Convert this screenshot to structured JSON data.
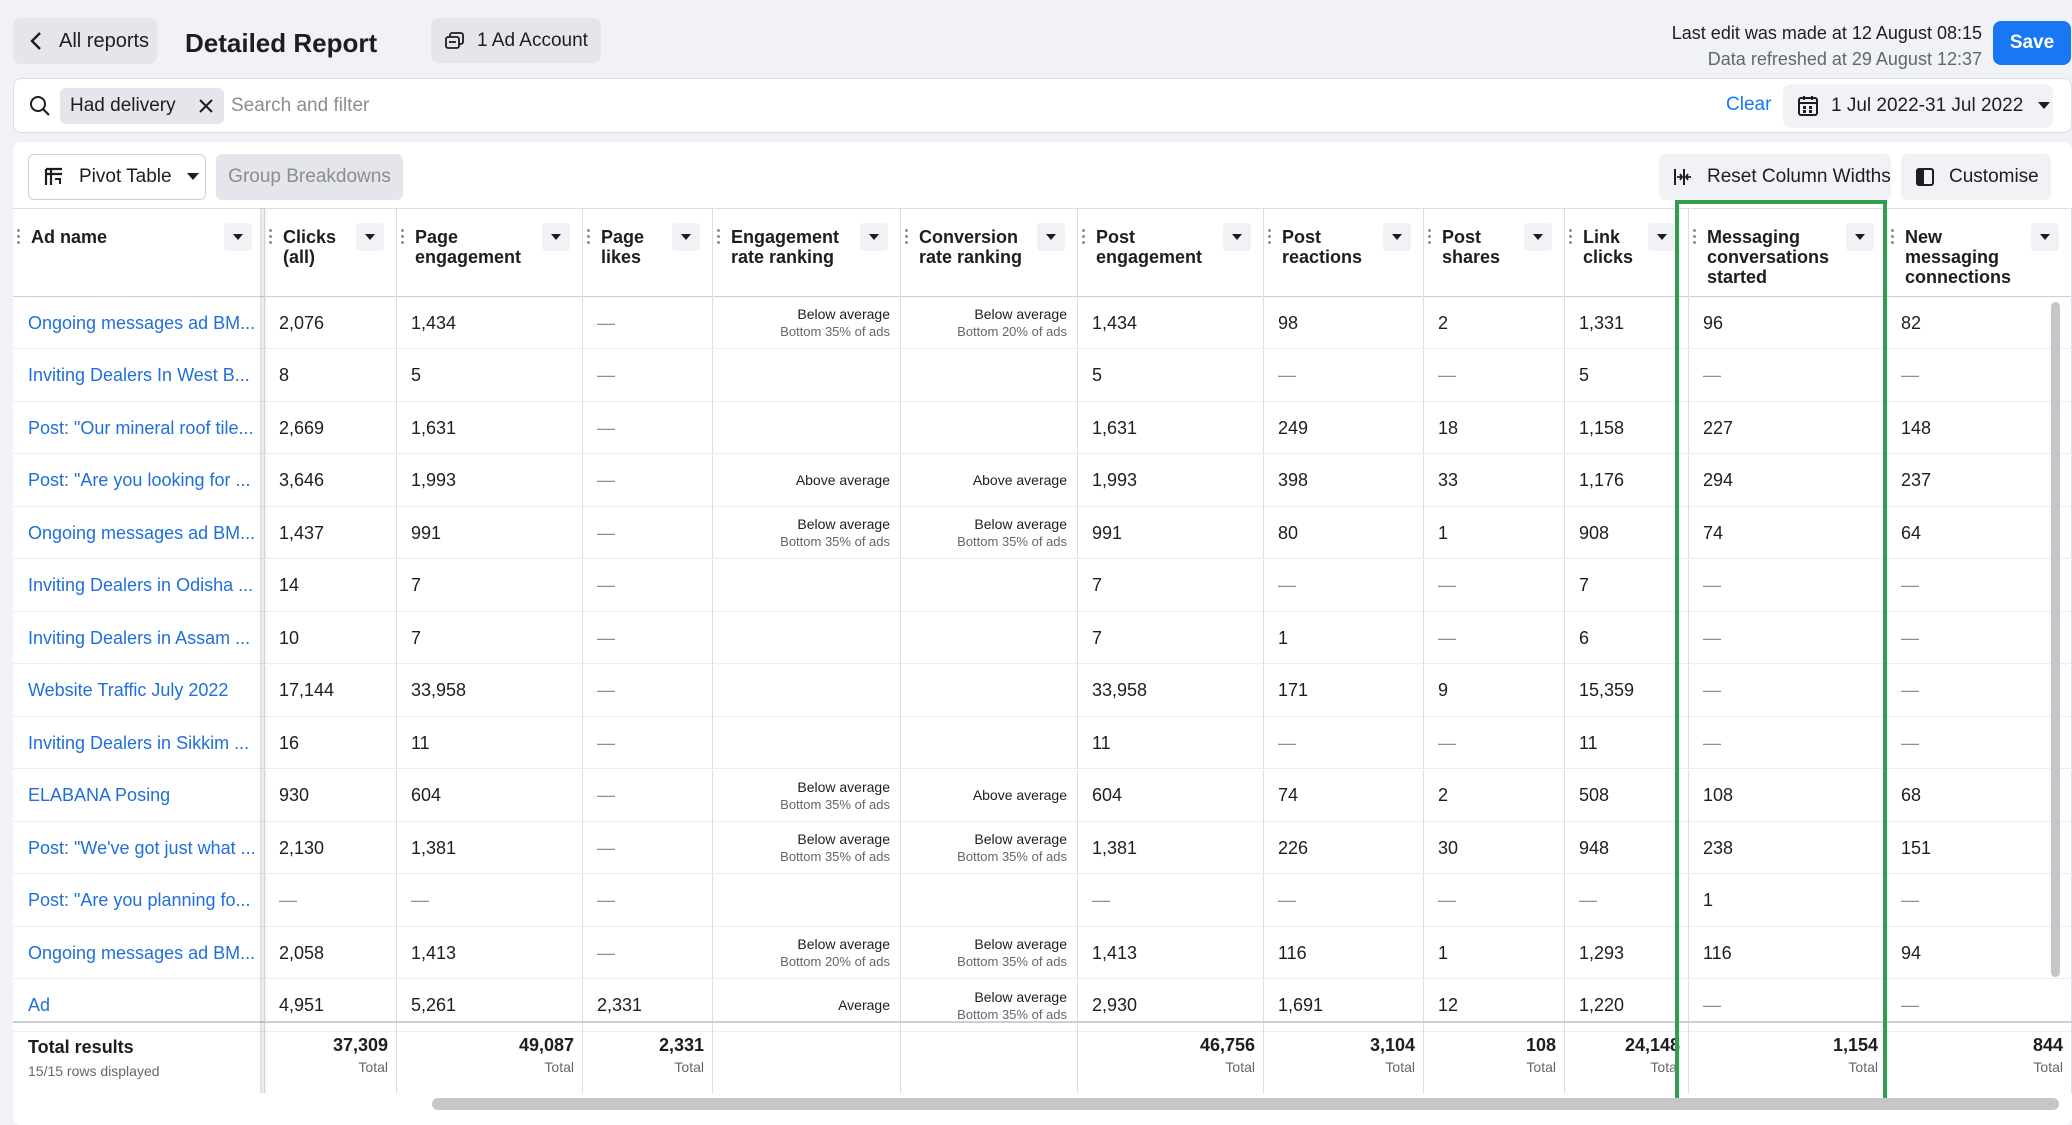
{
  "header": {
    "back_label": "All reports",
    "title": "Detailed Report",
    "account_label": "1 Ad Account",
    "last_edit": "Last edit was made at 12 August 08:15",
    "refreshed": "Data refreshed at 29 August 12:37",
    "save_label": "Save"
  },
  "search": {
    "chip_label": "Had delivery",
    "placeholder": "Search and filter",
    "value": "",
    "clear_label": "Clear",
    "date_range": "1 Jul 2022-31 Jul 2022"
  },
  "toolbar": {
    "pivot_label": "Pivot Table",
    "group_label": "Group Breakdowns",
    "reset_label": "Reset Column Widths",
    "customise_label": "Customise"
  },
  "columns": [
    {
      "key": "name",
      "label": "Ad name"
    },
    {
      "key": "clicks",
      "label": "Clicks (all)"
    },
    {
      "key": "page_eng",
      "label": "Page engagement"
    },
    {
      "key": "page_likes",
      "label": "Page likes"
    },
    {
      "key": "eng_rank",
      "label": "Engagement rate ranking"
    },
    {
      "key": "conv_rank",
      "label": "Conversion rate ranking"
    },
    {
      "key": "post_eng",
      "label": "Post engagement"
    },
    {
      "key": "reactions",
      "label": "Post reactions"
    },
    {
      "key": "shares",
      "label": "Post shares"
    },
    {
      "key": "link_clicks",
      "label": "Link clicks"
    },
    {
      "key": "msg_conv",
      "label": "Messaging conversations started"
    },
    {
      "key": "new_msg",
      "label": "New messaging connections"
    }
  ],
  "rows": [
    {
      "name": "Ongoing messages ad BM...",
      "clicks": "2,076",
      "page_eng": "1,434",
      "page_likes": "—",
      "eng_rank": [
        "Below average",
        "Bottom 35% of ads"
      ],
      "conv_rank": [
        "Below average",
        "Bottom 20% of ads"
      ],
      "post_eng": "1,434",
      "reactions": "98",
      "shares": "2",
      "link_clicks": "1,331",
      "msg_conv": "96",
      "new_msg": "82"
    },
    {
      "name": "Inviting Dealers In West B...",
      "clicks": "8",
      "page_eng": "5",
      "page_likes": "—",
      "eng_rank": [],
      "conv_rank": [],
      "post_eng": "5",
      "reactions": "—",
      "shares": "—",
      "link_clicks": "5",
      "msg_conv": "—",
      "new_msg": "—"
    },
    {
      "name": "Post: \"Our mineral roof tile...",
      "clicks": "2,669",
      "page_eng": "1,631",
      "page_likes": "—",
      "eng_rank": [],
      "conv_rank": [],
      "post_eng": "1,631",
      "reactions": "249",
      "shares": "18",
      "link_clicks": "1,158",
      "msg_conv": "227",
      "new_msg": "148"
    },
    {
      "name": "Post: \"Are you looking for ...",
      "clicks": "3,646",
      "page_eng": "1,993",
      "page_likes": "—",
      "eng_rank": [
        "Above average"
      ],
      "conv_rank": [
        "Above average"
      ],
      "post_eng": "1,993",
      "reactions": "398",
      "shares": "33",
      "link_clicks": "1,176",
      "msg_conv": "294",
      "new_msg": "237"
    },
    {
      "name": "Ongoing messages ad BM...",
      "clicks": "1,437",
      "page_eng": "991",
      "page_likes": "—",
      "eng_rank": [
        "Below average",
        "Bottom 35% of ads"
      ],
      "conv_rank": [
        "Below average",
        "Bottom 35% of ads"
      ],
      "post_eng": "991",
      "reactions": "80",
      "shares": "1",
      "link_clicks": "908",
      "msg_conv": "74",
      "new_msg": "64"
    },
    {
      "name": "Inviting Dealers in Odisha ...",
      "clicks": "14",
      "page_eng": "7",
      "page_likes": "—",
      "eng_rank": [],
      "conv_rank": [],
      "post_eng": "7",
      "reactions": "—",
      "shares": "—",
      "link_clicks": "7",
      "msg_conv": "—",
      "new_msg": "—"
    },
    {
      "name": "Inviting Dealers in Assam ...",
      "clicks": "10",
      "page_eng": "7",
      "page_likes": "—",
      "eng_rank": [],
      "conv_rank": [],
      "post_eng": "7",
      "reactions": "1",
      "shares": "—",
      "link_clicks": "6",
      "msg_conv": "—",
      "new_msg": "—"
    },
    {
      "name": "Website Traffic July 2022",
      "clicks": "17,144",
      "page_eng": "33,958",
      "page_likes": "—",
      "eng_rank": [],
      "conv_rank": [],
      "post_eng": "33,958",
      "reactions": "171",
      "shares": "9",
      "link_clicks": "15,359",
      "msg_conv": "—",
      "new_msg": "—"
    },
    {
      "name": "Inviting Dealers in Sikkim ...",
      "clicks": "16",
      "page_eng": "11",
      "page_likes": "—",
      "eng_rank": [],
      "conv_rank": [],
      "post_eng": "11",
      "reactions": "—",
      "shares": "—",
      "link_clicks": "11",
      "msg_conv": "—",
      "new_msg": "—"
    },
    {
      "name": "ELABANA Posing",
      "clicks": "930",
      "page_eng": "604",
      "page_likes": "—",
      "eng_rank": [
        "Below average",
        "Bottom 35% of ads"
      ],
      "conv_rank": [
        "Above average"
      ],
      "post_eng": "604",
      "reactions": "74",
      "shares": "2",
      "link_clicks": "508",
      "msg_conv": "108",
      "new_msg": "68"
    },
    {
      "name": "Post: \"We've got just what ...",
      "clicks": "2,130",
      "page_eng": "1,381",
      "page_likes": "—",
      "eng_rank": [
        "Below average",
        "Bottom 35% of ads"
      ],
      "conv_rank": [
        "Below average",
        "Bottom 35% of ads"
      ],
      "post_eng": "1,381",
      "reactions": "226",
      "shares": "30",
      "link_clicks": "948",
      "msg_conv": "238",
      "new_msg": "151"
    },
    {
      "name": "Post: \"Are you planning fo...",
      "clicks": "—",
      "page_eng": "—",
      "page_likes": "—",
      "eng_rank": [],
      "conv_rank": [],
      "post_eng": "—",
      "reactions": "—",
      "shares": "—",
      "link_clicks": "—",
      "msg_conv": "1",
      "new_msg": "—"
    },
    {
      "name": "Ongoing messages ad BM...",
      "clicks": "2,058",
      "page_eng": "1,413",
      "page_likes": "—",
      "eng_rank": [
        "Below average",
        "Bottom 20% of ads"
      ],
      "conv_rank": [
        "Below average",
        "Bottom 35% of ads"
      ],
      "post_eng": "1,413",
      "reactions": "116",
      "shares": "1",
      "link_clicks": "1,293",
      "msg_conv": "116",
      "new_msg": "94"
    },
    {
      "name": "Ad",
      "clicks": "4,951",
      "page_eng": "5,261",
      "page_likes": "2,331",
      "eng_rank": [
        "Average"
      ],
      "conv_rank": [
        "Below average",
        "Bottom 35% of ads"
      ],
      "post_eng": "2,930",
      "reactions": "1,691",
      "shares": "12",
      "link_clicks": "1,220",
      "msg_conv": "—",
      "new_msg": "—"
    }
  ],
  "totals": {
    "label": "Total results",
    "rows_displayed": "15/15 rows displayed",
    "total_word": "Total",
    "clicks": "37,309",
    "page_eng": "49,087",
    "page_likes": "2,331",
    "post_eng": "46,756",
    "reactions": "3,104",
    "shares": "108",
    "link_clicks": "24,148",
    "msg_conv": "1,154",
    "new_msg": "844"
  },
  "highlight_color": "#2ea04d",
  "icons": [
    "chevron-left-icon",
    "ad-account-icon",
    "search-icon",
    "close-icon",
    "calendar-icon",
    "caret-down-icon",
    "pivot-table-icon",
    "reset-widths-icon",
    "customise-columns-icon"
  ]
}
